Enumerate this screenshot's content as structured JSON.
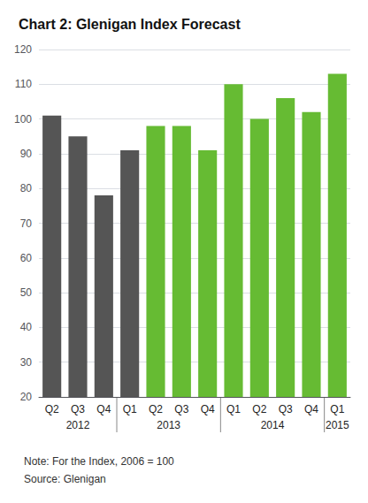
{
  "chart_data": {
    "type": "bar",
    "title": "Chart 2: Glenigan Index Forecast",
    "categories": [
      "Q2",
      "Q3",
      "Q4",
      "Q1",
      "Q2",
      "Q3",
      "Q4",
      "Q1",
      "Q2",
      "Q3",
      "Q4",
      "Q1"
    ],
    "values": [
      101,
      95,
      78,
      91,
      98,
      98,
      91,
      110,
      100,
      106,
      102,
      113
    ],
    "colors": [
      "#555555",
      "#555555",
      "#555555",
      "#555555",
      "#66bb33",
      "#66bb33",
      "#66bb33",
      "#66bb33",
      "#66bb33",
      "#66bb33",
      "#66bb33",
      "#66bb33"
    ],
    "ylim": [
      20,
      120
    ],
    "yticks": [
      20,
      30,
      40,
      50,
      60,
      70,
      80,
      90,
      100,
      110,
      120
    ],
    "grid": true,
    "year_labels": [
      "2012",
      "2013",
      "2014",
      "2015"
    ],
    "annotations": [
      "Note: For the Index, 2006 = 100",
      "Source: Glenigan"
    ]
  }
}
